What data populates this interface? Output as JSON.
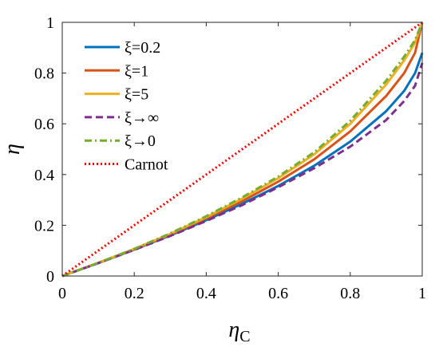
{
  "chart_data": {
    "type": "line",
    "xlabel": "η",
    "xlabel_sub": "C",
    "ylabel": "η",
    "xlim": [
      0,
      1
    ],
    "ylim": [
      0,
      1
    ],
    "xticks": [
      "0",
      "0.2",
      "0.4",
      "0.6",
      "0.8",
      "1"
    ],
    "yticks": [
      "0",
      "0.2",
      "0.4",
      "0.6",
      "0.8",
      "1"
    ],
    "grid": false,
    "legend_position": "top-left",
    "x": [
      0,
      0.1,
      0.2,
      0.3,
      0.4,
      0.5,
      0.6,
      0.7,
      0.8,
      0.9,
      0.95,
      0.98,
      1.0
    ],
    "series": [
      {
        "name": "ξ=0.2",
        "color": "#0072BD",
        "dash": "solid",
        "values": [
          0,
          0.051,
          0.104,
          0.16,
          0.22,
          0.285,
          0.355,
          0.435,
          0.53,
          0.65,
          0.73,
          0.8,
          0.88
        ]
      },
      {
        "name": "ξ=1",
        "color": "#D95319",
        "dash": "solid",
        "values": [
          0,
          0.052,
          0.105,
          0.163,
          0.227,
          0.295,
          0.372,
          0.46,
          0.57,
          0.71,
          0.8,
          0.88,
          1.0
        ]
      },
      {
        "name": "ξ=5",
        "color": "#EDB120",
        "dash": "solid",
        "values": [
          0,
          0.052,
          0.107,
          0.166,
          0.232,
          0.305,
          0.386,
          0.48,
          0.6,
          0.755,
          0.85,
          0.92,
          1.0
        ]
      },
      {
        "name": "ξ→∞",
        "color": "#7E2F8E",
        "dash": "dashed",
        "values": [
          0,
          0.051,
          0.103,
          0.158,
          0.217,
          0.28,
          0.35,
          0.425,
          0.51,
          0.615,
          0.69,
          0.75,
          0.84
        ]
      },
      {
        "name": "ξ→0",
        "color": "#77AC30",
        "dash": "dashdot",
        "values": [
          0,
          0.052,
          0.107,
          0.168,
          0.236,
          0.31,
          0.392,
          0.488,
          0.612,
          0.77,
          0.865,
          0.93,
          1.0
        ]
      },
      {
        "name": "Carnot",
        "color": "#FF0000",
        "dash": "dotted",
        "values": [
          0,
          0.1,
          0.2,
          0.3,
          0.4,
          0.5,
          0.6,
          0.7,
          0.8,
          0.9,
          0.95,
          0.98,
          1.0
        ]
      }
    ]
  }
}
